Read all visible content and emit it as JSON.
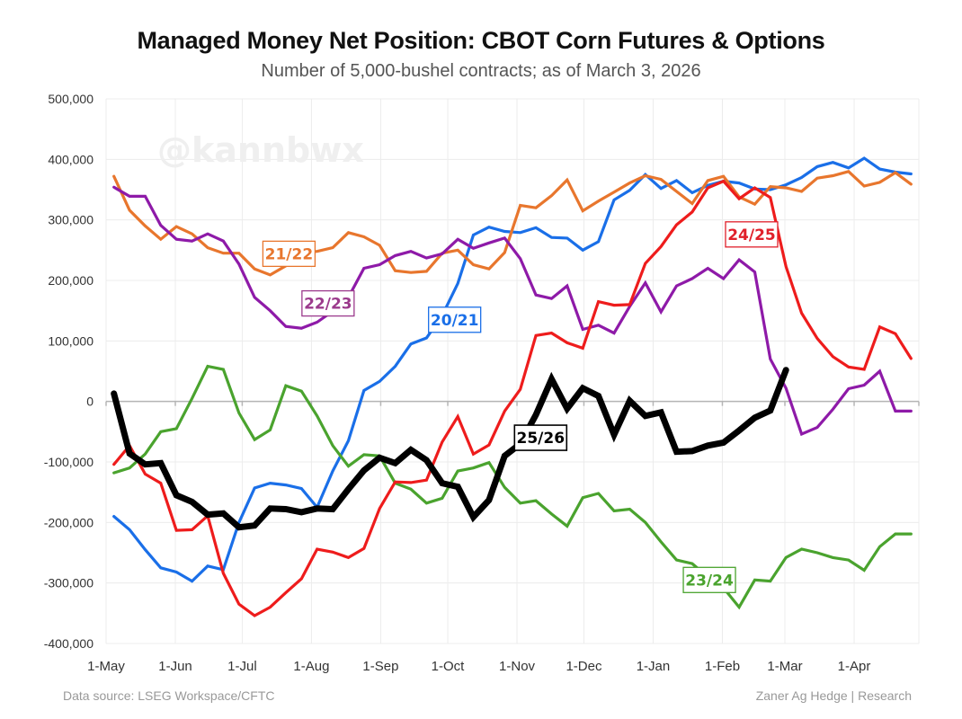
{
  "chart_data": {
    "type": "line",
    "title": "Managed Money Net Position: CBOT Corn Futures & Options",
    "subtitle": "Number of 5,000-bushel contracts; as of March 3, 2026",
    "xlabel": "",
    "ylabel": "",
    "x_unit": "weeks since 1-May",
    "ylim": [
      -400000,
      500000
    ],
    "yticks": [
      500000,
      400000,
      300000,
      200000,
      100000,
      0,
      -100000,
      -200000,
      -300000,
      -400000
    ],
    "ytick_labels": [
      "500,000",
      "400,000",
      "300,000",
      "200,000",
      "100,000",
      "0",
      "-100,000",
      "-200,000",
      "-300,000",
      "-400,000"
    ],
    "xticks": [
      0,
      4.43,
      8.71,
      13.14,
      17.57,
      21.86,
      26.29,
      30.57,
      35,
      39.43,
      43.43,
      47.86
    ],
    "xtick_labels": [
      "1-May",
      "1-Jun",
      "1-Jul",
      "1-Aug",
      "1-Sep",
      "1-Oct",
      "1-Nov",
      "1-Dec",
      "1-Jan",
      "1-Feb",
      "1-Mar",
      "1-Apr"
    ],
    "xlim": [
      0,
      52
    ],
    "grid": true,
    "watermark": "@kannbwx",
    "series": [
      {
        "name": "20/21",
        "color": "#1a6fe8",
        "x": [
          0.5,
          1.5,
          2.5,
          3.5,
          4.5,
          5.5,
          6.5,
          7.5,
          8.5,
          9.5,
          10.5,
          11.5,
          12.5,
          13.5,
          14.5,
          15.5,
          16.5,
          17.5,
          18.5,
          19.5,
          20.5,
          21.5,
          22.5,
          23.5,
          24.5,
          25.5,
          26.5,
          27.5,
          28.5,
          29.5,
          30.5,
          31.5,
          32.5,
          33.5,
          34.5,
          35.5,
          36.5,
          37.5,
          38.5,
          39.5,
          40.5,
          41.5,
          42.5,
          43.5,
          44.5,
          45.5,
          46.5,
          47.5,
          48.5,
          49.5,
          50.5,
          51.5
        ],
        "values": [
          -190000,
          -212000,
          -245000,
          -275000,
          -282000,
          -297000,
          -272000,
          -278000,
          -200000,
          -143000,
          -135000,
          -138000,
          -144000,
          -175000,
          -115000,
          -65000,
          18000,
          33000,
          58000,
          95000,
          105000,
          142000,
          195000,
          275000,
          288000,
          281000,
          279000,
          287000,
          271000,
          270000,
          250000,
          264000,
          333000,
          349000,
          375000,
          352000,
          365000,
          345000,
          357000,
          364000,
          361000,
          351000,
          350000,
          358000,
          370000,
          388000,
          395000,
          386000,
          402000,
          384000,
          379000,
          376000
        ]
      },
      {
        "name": "21/22",
        "color": "#e8762d",
        "x": [
          0.5,
          1.5,
          2.5,
          3.5,
          4.5,
          5.5,
          6.5,
          7.5,
          8.5,
          9.5,
          10.5,
          11.5,
          12.5,
          13.5,
          14.5,
          15.5,
          16.5,
          17.5,
          18.5,
          19.5,
          20.5,
          21.5,
          22.5,
          23.5,
          24.5,
          25.5,
          26.5,
          27.5,
          28.5,
          29.5,
          30.5,
          31.5,
          32.5,
          33.5,
          34.5,
          35.5,
          36.5,
          37.5,
          38.5,
          39.5,
          40.5,
          41.5,
          42.5,
          43.5,
          44.5,
          45.5,
          46.5,
          47.5,
          48.5,
          49.5,
          50.5,
          51.5
        ],
        "values": [
          372000,
          316000,
          290000,
          268000,
          289000,
          277000,
          254000,
          245000,
          245000,
          219000,
          209000,
          224000,
          246000,
          248000,
          254000,
          279000,
          272000,
          258000,
          216000,
          213000,
          215000,
          245000,
          250000,
          226000,
          219000,
          246000,
          324000,
          320000,
          340000,
          366000,
          315000,
          331000,
          346000,
          361000,
          373000,
          367000,
          347000,
          327000,
          365000,
          372000,
          338000,
          326000,
          355000,
          353000,
          347000,
          369000,
          373000,
          380000,
          356000,
          362000,
          378000,
          359000
        ]
      },
      {
        "name": "22/23",
        "color": "#8e1aa8",
        "x": [
          0.5,
          1.5,
          2.5,
          3.5,
          4.5,
          5.5,
          6.5,
          7.5,
          8.5,
          9.5,
          10.5,
          11.5,
          12.5,
          13.5,
          14.5,
          15.5,
          16.5,
          17.5,
          18.5,
          19.5,
          20.5,
          21.5,
          22.5,
          23.5,
          24.5,
          25.5,
          26.5,
          27.5,
          28.5,
          29.5,
          30.5,
          31.5,
          32.5,
          33.5,
          34.5,
          35.5,
          36.5,
          37.5,
          38.5,
          39.5,
          40.5,
          41.5,
          42.5,
          43.5,
          44.5,
          45.5,
          46.5,
          47.5,
          48.5,
          49.5,
          50.5,
          51.5
        ],
        "values": [
          354000,
          339000,
          339000,
          291000,
          268000,
          265000,
          277000,
          265000,
          227000,
          172000,
          150000,
          124000,
          121000,
          131000,
          149000,
          172000,
          220000,
          226000,
          241000,
          248000,
          237000,
          244000,
          268000,
          253000,
          262000,
          270000,
          236000,
          176000,
          170000,
          191000,
          119000,
          126000,
          113000,
          157000,
          196000,
          148000,
          191000,
          203000,
          220000,
          203000,
          234000,
          214000,
          70000,
          22000,
          -54000,
          -43000,
          -13000,
          21000,
          27000,
          50000,
          -16000,
          -16000
        ]
      },
      {
        "name": "23/24",
        "color": "#4aa32e",
        "x": [
          0.5,
          1.5,
          2.5,
          3.5,
          4.5,
          5.5,
          6.5,
          7.5,
          8.5,
          9.5,
          10.5,
          11.5,
          12.5,
          13.5,
          14.5,
          15.5,
          16.5,
          17.5,
          18.5,
          19.5,
          20.5,
          21.5,
          22.5,
          23.5,
          24.5,
          25.5,
          26.5,
          27.5,
          28.5,
          29.5,
          30.5,
          31.5,
          32.5,
          33.5,
          34.5,
          35.5,
          36.5,
          37.5,
          38.5,
          39.5,
          40.5,
          41.5,
          42.5,
          43.5,
          44.5,
          45.5,
          46.5,
          47.5,
          48.5,
          49.5,
          50.5,
          51.5
        ],
        "values": [
          -118000,
          -110000,
          -87000,
          -50000,
          -45000,
          5000,
          58000,
          53000,
          -19000,
          -63000,
          -47000,
          26000,
          17000,
          -24000,
          -73000,
          -107000,
          -88000,
          -90000,
          -135000,
          -145000,
          -168000,
          -160000,
          -115000,
          -110000,
          -101000,
          -142000,
          -168000,
          -164000,
          -186000,
          -206000,
          -159000,
          -152000,
          -181000,
          -178000,
          -200000,
          -232000,
          -262000,
          -268000,
          -290000,
          -308000,
          -340000,
          -295000,
          -297000,
          -258000,
          -244000,
          -250000,
          -258000,
          -262000,
          -279000,
          -240000,
          -219000,
          -219000
        ]
      },
      {
        "name": "24/25",
        "color": "#ee1c1c",
        "x": [
          0.5,
          1.5,
          2.5,
          3.5,
          4.5,
          5.5,
          6.5,
          7.5,
          8.5,
          9.5,
          10.5,
          11.5,
          12.5,
          13.5,
          14.5,
          15.5,
          16.5,
          17.5,
          18.5,
          19.5,
          20.5,
          21.5,
          22.5,
          23.5,
          24.5,
          25.5,
          26.5,
          27.5,
          28.5,
          29.5,
          30.5,
          31.5,
          32.5,
          33.5,
          34.5,
          35.5,
          36.5,
          37.5,
          38.5,
          39.5,
          40.5,
          41.5,
          42.5,
          43.5,
          44.5,
          45.5,
          46.5,
          47.5,
          48.5,
          49.5,
          50.5,
          51.5
        ],
        "values": [
          -104000,
          -73000,
          -120000,
          -135000,
          -213000,
          -212000,
          -189000,
          -284000,
          -335000,
          -354000,
          -340000,
          -316000,
          -293000,
          -244000,
          -249000,
          -258000,
          -243000,
          -177000,
          -133000,
          -134000,
          -130000,
          -67000,
          -25000,
          -87000,
          -72000,
          -16000,
          20000,
          109000,
          113000,
          97000,
          88000,
          165000,
          159000,
          160000,
          228000,
          256000,
          292000,
          313000,
          353000,
          364000,
          335000,
          353000,
          337000,
          223000,
          146000,
          104000,
          74000,
          57000,
          53000,
          123000,
          112000,
          71000
        ]
      },
      {
        "name": "25/26",
        "color": "#000000",
        "x": [
          0.5,
          1.5,
          2.5,
          3.5,
          4.5,
          5.5,
          6.5,
          7.5,
          8.5,
          9.5,
          10.5,
          11.5,
          12.5,
          13.5,
          14.5,
          15.5,
          16.5,
          17.5,
          18.5,
          19.5,
          20.5,
          21.5,
          22.5,
          23.5,
          24.5,
          25.5,
          26.5,
          27.5,
          28.5,
          29.5,
          30.5,
          31.5,
          32.5,
          33.5,
          34.5,
          35.5,
          36.5,
          37.5,
          38.5,
          39.5,
          40.5,
          41.5,
          42.5,
          43.5
        ],
        "values": [
          13000,
          -86000,
          -104000,
          -102000,
          -155000,
          -166000,
          -187000,
          -185000,
          -208000,
          -205000,
          -177000,
          -178000,
          -183000,
          -177000,
          -178000,
          -145000,
          -114000,
          -93000,
          -102000,
          -80000,
          -97000,
          -135000,
          -141000,
          -191000,
          -163000,
          -90000,
          -70000,
          -22000,
          37000,
          -12000,
          22000,
          9000,
          -55000,
          1000,
          -24000,
          -18000,
          -83000,
          -82000,
          -73000,
          -68000,
          -48000,
          -27000,
          -15000,
          52000
        ]
      }
    ],
    "annotations": [
      {
        "text": "21/22",
        "series": "21/22",
        "x": 11.7,
        "y": 244000
      },
      {
        "text": "22/23",
        "series": "22/23",
        "x": 14.2,
        "y": 162000
      },
      {
        "text": "20/21",
        "series": "20/21",
        "x": 22.3,
        "y": 135000
      },
      {
        "text": "24/25",
        "series": "24/25",
        "x": 41.3,
        "y": 276000
      },
      {
        "text": "25/26",
        "series": "25/26",
        "x": 27.8,
        "y": -60000
      },
      {
        "text": "23/24",
        "series": "23/24",
        "x": 38.6,
        "y": -295000
      }
    ]
  },
  "footer": {
    "source": "Data source: LSEG Workspace/CFTC",
    "credit": "Zaner Ag Hedge | Research"
  }
}
